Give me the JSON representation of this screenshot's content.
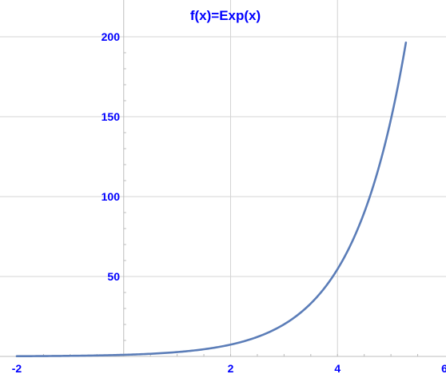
{
  "chart_data": {
    "type": "line",
    "title": "f(x)=Exp(x)",
    "xlabel": "",
    "ylabel": "",
    "xlim": [
      -2,
      6
    ],
    "ylim": [
      0,
      210
    ],
    "x_ticks": [
      -2,
      2,
      4,
      6
    ],
    "x_tick_labels": [
      "-2",
      "2",
      "4",
      "6"
    ],
    "y_ticks": [
      50,
      100,
      150,
      200
    ],
    "y_tick_labels": [
      "50",
      "100",
      "150",
      "200"
    ],
    "grid": true,
    "series": [
      {
        "function": "exp(x)",
        "color": "#5b7db8",
        "x": [
          -2,
          -1.5,
          -1,
          -0.5,
          0,
          0.5,
          1,
          1.5,
          2,
          2.5,
          3,
          3.5,
          4,
          4.25,
          4.5,
          4.75,
          5,
          5.1,
          5.2,
          5.28
        ],
        "y": [
          0.14,
          0.22,
          0.37,
          0.61,
          1,
          1.65,
          2.72,
          4.48,
          7.39,
          12.18,
          20.09,
          33.12,
          54.6,
          70.11,
          90.02,
          115.58,
          148.41,
          164.02,
          181.27,
          196.37
        ]
      }
    ]
  }
}
